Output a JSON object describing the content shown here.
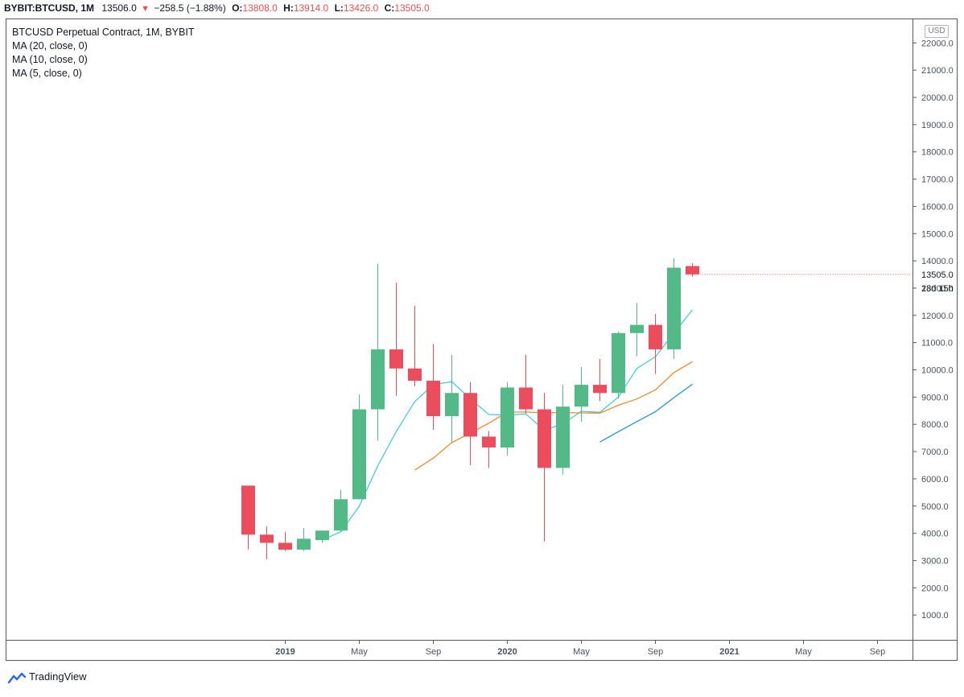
{
  "header": {
    "symbol": "BYBIT:BTCUSD, 1M",
    "last": "13506.0",
    "change": "−258.5 (−1.88%)",
    "o_label": "O:",
    "o_value": "13808.0",
    "h_label": "H:",
    "h_value": "13914.0",
    "l_label": "L:",
    "l_value": "13426.0",
    "c_label": "C:",
    "c_value": "13505.0"
  },
  "legend": {
    "title": "BTCUSD Perpetual Contract, 1M, BYBIT",
    "ma20": "MA (20, close, 0)",
    "ma10": "MA (10, close, 0)",
    "ma5": "MA (5, close, 0)"
  },
  "currency": "USD",
  "brand": "TradingView",
  "colors": {
    "up": "#53b987",
    "down": "#eb4d5c",
    "ma5": "#4dc9d8",
    "ma10": "#ef8a2f",
    "ma20": "#2196c8",
    "axis_text": "#4c525e"
  },
  "chart_data": {
    "type": "candlestick",
    "interval": "1M",
    "y_axis": {
      "ticks": [
        1000,
        2000,
        3000,
        4000,
        5000,
        6000,
        7000,
        8000,
        9000,
        10000,
        11000,
        12000,
        13000,
        14000,
        15000,
        16000,
        17000,
        18000,
        19000,
        20000,
        21000,
        22000
      ],
      "tick_labels": [
        "1000.0",
        "2000.0",
        "3000.0",
        "4000.0",
        "5000.0",
        "6000.0",
        "7000.0",
        "8000.0",
        "9000.0",
        "10000.0",
        "11000.0",
        "12000.0",
        "13000.0",
        "14000.0",
        "15000.0",
        "16000.0",
        "17000.0",
        "18000.0",
        "19000.0",
        "20000.0",
        "21000.0",
        "22000.0"
      ],
      "last_price_label": "13505.0",
      "countdown_label": "28d 15h"
    },
    "x_axis": {
      "ticks": [
        {
          "label": "2019",
          "month": "2019-01",
          "bold": true
        },
        {
          "label": "May",
          "month": "2019-05",
          "bold": false
        },
        {
          "label": "Sep",
          "month": "2019-09",
          "bold": false
        },
        {
          "label": "2020",
          "month": "2020-01",
          "bold": true
        },
        {
          "label": "May",
          "month": "2020-05",
          "bold": false
        },
        {
          "label": "Sep",
          "month": "2020-09",
          "bold": false
        },
        {
          "label": "2021",
          "month": "2021-01",
          "bold": true
        },
        {
          "label": "May",
          "month": "2021-05",
          "bold": false
        },
        {
          "label": "Sep",
          "month": "2021-09",
          "bold": false
        }
      ]
    },
    "candles": [
      {
        "month": "2018-11",
        "o": 5750,
        "h": 5750,
        "l": 3400,
        "c": 3950
      },
      {
        "month": "2018-12",
        "o": 3950,
        "h": 4250,
        "l": 3050,
        "c": 3650
      },
      {
        "month": "2019-01",
        "o": 3650,
        "h": 4050,
        "l": 3350,
        "c": 3400
      },
      {
        "month": "2019-02",
        "o": 3400,
        "h": 4200,
        "l": 3350,
        "c": 3800
      },
      {
        "month": "2019-03",
        "o": 3750,
        "h": 4100,
        "l": 3650,
        "c": 4100
      },
      {
        "month": "2019-04",
        "o": 4100,
        "h": 5600,
        "l": 4050,
        "c": 5250
      },
      {
        "month": "2019-05",
        "o": 5250,
        "h": 9100,
        "l": 5250,
        "c": 8550
      },
      {
        "month": "2019-06",
        "o": 8550,
        "h": 13900,
        "l": 7400,
        "c": 10750
      },
      {
        "month": "2019-07",
        "o": 10750,
        "h": 13200,
        "l": 9050,
        "c": 10050
      },
      {
        "month": "2019-08",
        "o": 10050,
        "h": 12350,
        "l": 9400,
        "c": 9600
      },
      {
        "month": "2019-09",
        "o": 9600,
        "h": 10950,
        "l": 7800,
        "c": 8300
      },
      {
        "month": "2019-10",
        "o": 8300,
        "h": 10550,
        "l": 7350,
        "c": 9150
      },
      {
        "month": "2019-11",
        "o": 9150,
        "h": 9550,
        "l": 6500,
        "c": 7550
      },
      {
        "month": "2019-12",
        "o": 7550,
        "h": 7750,
        "l": 6400,
        "c": 7150
      },
      {
        "month": "2020-01",
        "o": 7150,
        "h": 9550,
        "l": 6850,
        "c": 9350
      },
      {
        "month": "2020-02",
        "o": 9350,
        "h": 10550,
        "l": 8400,
        "c": 8550
      },
      {
        "month": "2020-03",
        "o": 8550,
        "h": 9150,
        "l": 3700,
        "c": 6400
      },
      {
        "month": "2020-04",
        "o": 6400,
        "h": 9450,
        "l": 6150,
        "c": 8650
      },
      {
        "month": "2020-05",
        "o": 8650,
        "h": 10100,
        "l": 8100,
        "c": 9450
      },
      {
        "month": "2020-06",
        "o": 9450,
        "h": 10400,
        "l": 8850,
        "c": 9150
      },
      {
        "month": "2020-07",
        "o": 9150,
        "h": 11400,
        "l": 8950,
        "c": 11350
      },
      {
        "month": "2020-08",
        "o": 11350,
        "h": 12450,
        "l": 10500,
        "c": 11650
      },
      {
        "month": "2020-09",
        "o": 11650,
        "h": 12050,
        "l": 9850,
        "c": 10750
      },
      {
        "month": "2020-10",
        "o": 10750,
        "h": 14100,
        "l": 10400,
        "c": 13750
      },
      {
        "month": "2020-11",
        "o": 13808,
        "h": 13914,
        "l": 13426,
        "c": 13505
      }
    ],
    "series": [
      {
        "name": "MA (5, close, 0)",
        "values": [
          {
            "month": "2019-03",
            "v": 3760
          },
          {
            "month": "2019-04",
            "v": 4050
          },
          {
            "month": "2019-05",
            "v": 5000
          },
          {
            "month": "2019-06",
            "v": 6480
          },
          {
            "month": "2019-07",
            "v": 7740
          },
          {
            "month": "2019-08",
            "v": 8840
          },
          {
            "month": "2019-09",
            "v": 9450
          },
          {
            "month": "2019-10",
            "v": 9570
          },
          {
            "month": "2019-11",
            "v": 8930
          },
          {
            "month": "2019-12",
            "v": 8360
          },
          {
            "month": "2020-01",
            "v": 8340
          },
          {
            "month": "2020-02",
            "v": 8380
          },
          {
            "month": "2020-03",
            "v": 7780
          },
          {
            "month": "2020-04",
            "v": 8020
          },
          {
            "month": "2020-05",
            "v": 8480
          },
          {
            "month": "2020-06",
            "v": 8440
          },
          {
            "month": "2020-07",
            "v": 9000
          },
          {
            "month": "2020-08",
            "v": 10050
          },
          {
            "month": "2020-09",
            "v": 10480
          },
          {
            "month": "2020-10",
            "v": 11350
          },
          {
            "month": "2020-11",
            "v": 12200
          }
        ]
      },
      {
        "name": "MA (10, close, 0)",
        "values": [
          {
            "month": "2019-08",
            "v": 6320
          },
          {
            "month": "2019-09",
            "v": 6760
          },
          {
            "month": "2019-10",
            "v": 7330
          },
          {
            "month": "2019-11",
            "v": 7680
          },
          {
            "month": "2019-12",
            "v": 8040
          },
          {
            "month": "2020-01",
            "v": 8450
          },
          {
            "month": "2020-02",
            "v": 8450
          },
          {
            "month": "2020-03",
            "v": 8430
          },
          {
            "month": "2020-04",
            "v": 8430
          },
          {
            "month": "2020-05",
            "v": 8420
          },
          {
            "month": "2020-06",
            "v": 8410
          },
          {
            "month": "2020-07",
            "v": 8700
          },
          {
            "month": "2020-08",
            "v": 8930
          },
          {
            "month": "2020-09",
            "v": 9260
          },
          {
            "month": "2020-10",
            "v": 9900
          },
          {
            "month": "2020-11",
            "v": 10300
          }
        ]
      },
      {
        "name": "MA (20, close, 0)",
        "values": [
          {
            "month": "2020-06",
            "v": 7350
          },
          {
            "month": "2020-07",
            "v": 7730
          },
          {
            "month": "2020-08",
            "v": 8100
          },
          {
            "month": "2020-09",
            "v": 8460
          },
          {
            "month": "2020-10",
            "v": 8980
          },
          {
            "month": "2020-11",
            "v": 9470
          }
        ]
      }
    ]
  }
}
